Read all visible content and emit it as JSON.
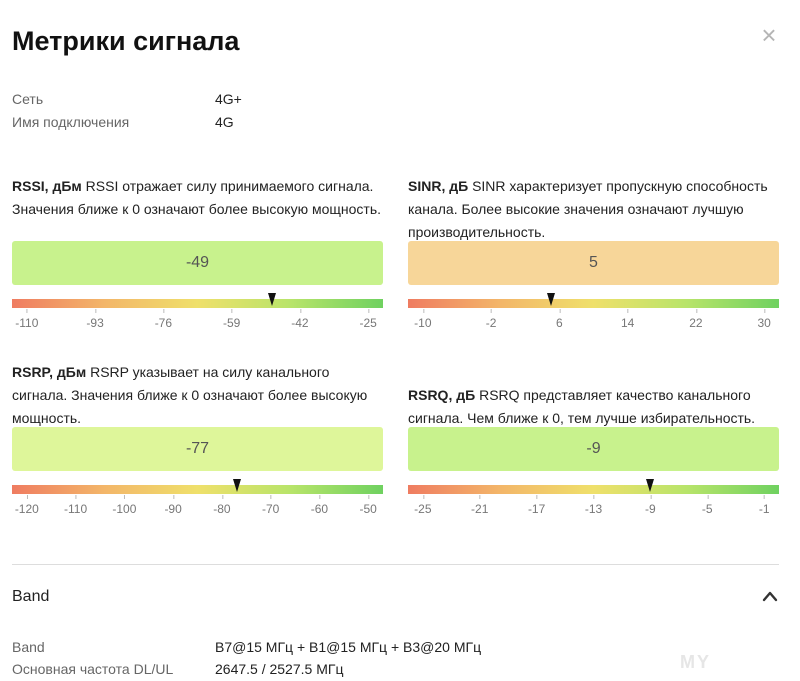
{
  "title": "Метрики сигнала",
  "close_icon": "close-icon",
  "info": [
    {
      "key": "Сеть",
      "value": "4G+"
    },
    {
      "key": "Имя подключения",
      "value": "4G"
    }
  ],
  "metrics": [
    {
      "id": "rssi",
      "label": "RSSI, дБм",
      "desc": " RSSI отражает силу принимаемого сигнала. Значения ближе к 0 означают более высокую мощность.",
      "value": "-49",
      "box_color": "#c8f28d",
      "ticks": [
        "-110",
        "-93",
        "-76",
        "-59",
        "-42",
        "-25"
      ],
      "range": [
        -110,
        -25
      ],
      "reading": -49
    },
    {
      "id": "sinr",
      "label": "SINR, дБ",
      "desc": " SINR характеризует пропускную способность канала. Более высокие значения означают лучшую производительность.",
      "value": "5",
      "box_color": "#f7d699",
      "ticks": [
        "-10",
        "-2",
        "6",
        "14",
        "22",
        "30"
      ],
      "range": [
        -10,
        30
      ],
      "reading": 5
    },
    {
      "id": "rsrp",
      "label": "RSRP, дБм",
      "desc": " RSRP указывает на силу канального сигнала. Значения ближе к 0 означают более высокую мощность.",
      "value": "-77",
      "box_color": "#def69a",
      "ticks": [
        "-120",
        "-110",
        "-100",
        "-90",
        "-80",
        "-70",
        "-60",
        "-50"
      ],
      "range": [
        -123,
        -47
      ],
      "reading": -77
    },
    {
      "id": "rsrq",
      "label": "RSRQ, дБ",
      "desc": " RSRQ представляет качество канального сигнала. Чем ближе к 0, тем лучше избирательность.",
      "value": "-9",
      "box_color": "#c8f28d",
      "ticks": [
        "-25",
        "-21",
        "-17",
        "-13",
        "-9",
        "-5",
        "-1"
      ],
      "range": [
        -27,
        1
      ],
      "reading": -9
    }
  ],
  "band": {
    "header": "Band",
    "chevron_icon": "chevron-up-icon",
    "rows": [
      {
        "key": "Band",
        "value": "B7@15 МГц + B1@15 МГц + B3@20 МГц"
      },
      {
        "key": "Основная частота DL/UL",
        "value": "2647.5 / 2527.5 МГц"
      }
    ]
  },
  "watermark": "MY"
}
